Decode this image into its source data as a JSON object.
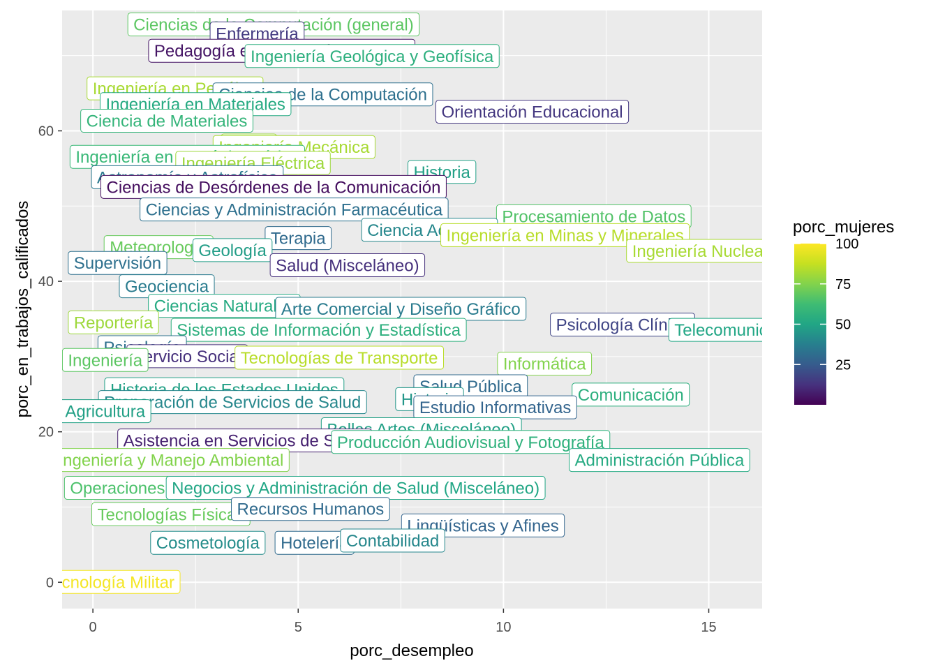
{
  "chart_data": {
    "type": "scatter",
    "subtype": "labeled points (geom_label)",
    "title": "",
    "xlabel": "porc_desempleo",
    "ylabel": "porc_en_trabajos_calificados",
    "xlim": [
      -0.75,
      16.3
    ],
    "ylim": [
      -3.5,
      76
    ],
    "x_ticks": [
      0,
      5,
      10,
      15
    ],
    "y_ticks": [
      0,
      20,
      40,
      60
    ],
    "x_tick_labels": [
      "0",
      "5",
      "10",
      "15"
    ],
    "y_tick_labels": [
      "0",
      "20",
      "40",
      "60"
    ],
    "grid": true,
    "background": "#EBEBEB",
    "legend": {
      "title": "porc_mujeres",
      "position": "right",
      "type": "colorbar",
      "palette": "viridis",
      "range": [
        0,
        100
      ],
      "ticks": [
        "25",
        "50",
        "75",
        "100"
      ]
    },
    "points": [
      {
        "label": "Ciencias de la Computación (general)",
        "x": 4.4,
        "y": 74.1,
        "color": 68
      },
      {
        "label": "Enfermería",
        "x": 4.0,
        "y": 72.9,
        "color": 15
      },
      {
        "label": "Pedagogía en Educación Especial",
        "x": 4.6,
        "y": 70.6,
        "color": 5
      },
      {
        "label": "Ingeniería Geológica y Geofísica",
        "x": 6.8,
        "y": 69.9,
        "color": 55
      },
      {
        "label": "Ingeniería en Petróleo",
        "x": 2.0,
        "y": 65.6,
        "color": 82
      },
      {
        "label": "Ciencias de la Computación",
        "x": 5.6,
        "y": 64.8,
        "color": 32
      },
      {
        "label": "Ingeniería en Materiales",
        "x": 2.5,
        "y": 63.5,
        "color": 52
      },
      {
        "label": "Orientación Educacional",
        "x": 10.7,
        "y": 62.5,
        "color": 14
      },
      {
        "label": "Ciencia de Materiales",
        "x": 1.8,
        "y": 61.3,
        "color": 58
      },
      {
        "label": "Física",
        "x": 3.8,
        "y": 58.0,
        "color": 80
      },
      {
        "label": "Ingeniería Mecánica",
        "x": 4.9,
        "y": 57.8,
        "color": 82
      },
      {
        "label": "Ingeniería en Mecánica Física",
        "x": 2.3,
        "y": 56.5,
        "color": 60
      },
      {
        "label": "Ingeniería Eléctrica",
        "x": 3.9,
        "y": 55.7,
        "color": 80
      },
      {
        "label": "Historia",
        "x": 8.5,
        "y": 54.5,
        "color": 48
      },
      {
        "label": "Astronomía y Astrofísica",
        "x": 2.3,
        "y": 53.8,
        "color": 35
      },
      {
        "label": "Ciencias de Desórdenes de la Comunicación",
        "x": 4.4,
        "y": 52.5,
        "color": 3
      },
      {
        "label": "Ciencias y Administración Farmacéutica",
        "x": 4.9,
        "y": 49.5,
        "color": 32
      },
      {
        "label": "Procesamiento de Datos",
        "x": 12.2,
        "y": 48.6,
        "color": 66
      },
      {
        "label": "Ciencia Actuarial",
        "x": 8.2,
        "y": 46.8,
        "color": 40
      },
      {
        "label": "Ingeniería en Minas y Minerales",
        "x": 11.5,
        "y": 46.1,
        "color": 85
      },
      {
        "label": "Terapia",
        "x": 5.0,
        "y": 45.7,
        "color": 30
      },
      {
        "label": "Meteorología",
        "x": 1.6,
        "y": 44.5,
        "color": 70
      },
      {
        "label": "Geología",
        "x": 3.4,
        "y": 44.1,
        "color": 47
      },
      {
        "label": "Ingeniería Nuclear",
        "x": 14.8,
        "y": 44.0,
        "color": 82
      },
      {
        "label": "Supervisión",
        "x": 0.6,
        "y": 42.4,
        "color": 32
      },
      {
        "label": "Salud (Misceláneo)",
        "x": 6.2,
        "y": 42.1,
        "color": 12
      },
      {
        "label": "Geociencia",
        "x": 1.8,
        "y": 39.3,
        "color": 36
      },
      {
        "label": "Ciencias Naturales",
        "x": 3.2,
        "y": 36.7,
        "color": 52
      },
      {
        "label": "Arte Comercial y Diseño Gráfico",
        "x": 7.5,
        "y": 36.3,
        "color": 36
      },
      {
        "label": "Psicología Clínica",
        "x": 12.9,
        "y": 34.2,
        "color": 18
      },
      {
        "label": "Reportería",
        "x": 0.5,
        "y": 34.5,
        "color": 80
      },
      {
        "label": "Sistemas de Información y Estadística",
        "x": 5.5,
        "y": 33.5,
        "color": 55
      },
      {
        "label": "Telecomunicaciones",
        "x": 16.0,
        "y": 33.5,
        "color": 50
      },
      {
        "label": "Psicología",
        "x": 1.2,
        "y": 31.2,
        "color": 32
      },
      {
        "label": "Servicio Social",
        "x": 2.3,
        "y": 30.0,
        "color": 12
      },
      {
        "label": "Tecnologías de Transporte",
        "x": 6.0,
        "y": 29.8,
        "color": 85
      },
      {
        "label": "Ingeniería",
        "x": 0.3,
        "y": 29.5,
        "color": 68
      },
      {
        "label": "Informática",
        "x": 11.0,
        "y": 29.0,
        "color": 75
      },
      {
        "label": "Historia de los Estados Unidos",
        "x": 3.2,
        "y": 25.6,
        "color": 48
      },
      {
        "label": "Salud Pública",
        "x": 9.2,
        "y": 26.0,
        "color": 30
      },
      {
        "label": "Comunicación",
        "x": 13.1,
        "y": 24.9,
        "color": 55
      },
      {
        "label": "Preparación de Servicios de Salud",
        "x": 3.4,
        "y": 23.9,
        "color": 40
      },
      {
        "label": "Historia",
        "x": 8.2,
        "y": 24.3,
        "color": 45
      },
      {
        "label": "Estudio Informativas",
        "x": 9.8,
        "y": 23.2,
        "color": 28
      },
      {
        "label": "Agricultura",
        "x": 0.3,
        "y": 22.7,
        "color": 48
      },
      {
        "label": "Bellas Artes (Misceláneo)",
        "x": 8.0,
        "y": 20.3,
        "color": 48
      },
      {
        "label": "Asistencia en Servicios de Salud",
        "x": 3.7,
        "y": 18.8,
        "color": 8
      },
      {
        "label": "Producción Audiovisual y Fotografía",
        "x": 9.2,
        "y": 18.6,
        "color": 56
      },
      {
        "label": "Administración Pública",
        "x": 13.8,
        "y": 16.2,
        "color": 52
      },
      {
        "label": "Ingeniería y Manejo Ambiental",
        "x": 1.9,
        "y": 16.2,
        "color": 75
      },
      {
        "label": "Operaciones",
        "x": 0.6,
        "y": 12.5,
        "color": 65
      },
      {
        "label": "Negocios y Administración de Salud (Misceláneo)",
        "x": 6.4,
        "y": 12.5,
        "color": 50
      },
      {
        "label": "Tecnologías Físicas",
        "x": 1.9,
        "y": 9.0,
        "color": 70
      },
      {
        "label": "Recursos Humanos",
        "x": 5.3,
        "y": 9.7,
        "color": 30
      },
      {
        "label": "Lingüísticas y Afines",
        "x": 9.5,
        "y": 7.5,
        "color": 28
      },
      {
        "label": "Cosmetología",
        "x": 2.8,
        "y": 5.2,
        "color": 42
      },
      {
        "label": "Hotelería",
        "x": 5.4,
        "y": 5.2,
        "color": 30
      },
      {
        "label": "Contabilidad",
        "x": 7.3,
        "y": 5.5,
        "color": 40
      },
      {
        "label": "Tecnología Militar",
        "x": 0.4,
        "y": 0.0,
        "color": 98
      }
    ]
  }
}
